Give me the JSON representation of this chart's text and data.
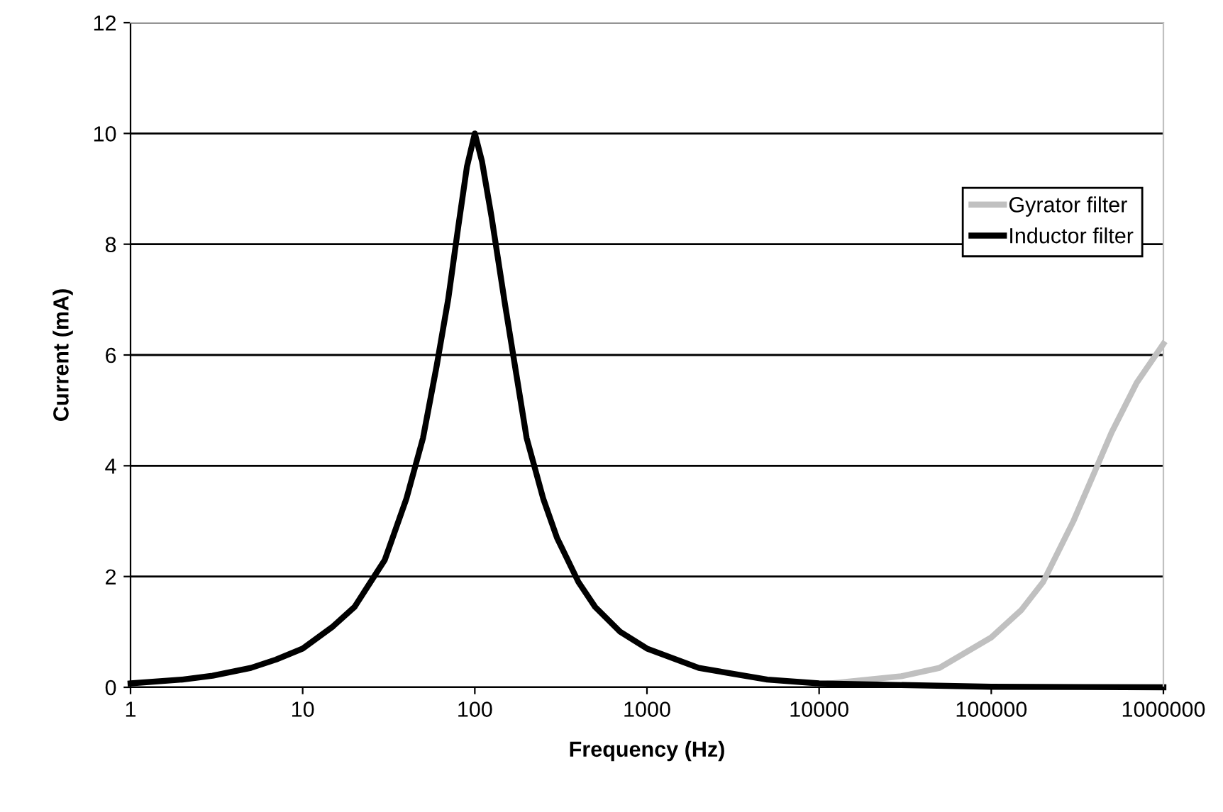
{
  "chart_data": {
    "type": "line",
    "xlabel": "Frequency (Hz)",
    "ylabel": "Current (mA)",
    "log": "x",
    "xlim": [
      1,
      1000000
    ],
    "xticks": [
      1,
      10,
      100,
      1000,
      10000,
      100000,
      1000000
    ],
    "ylim": [
      0,
      12
    ],
    "yticks": [
      0,
      2,
      4,
      6,
      8,
      10,
      12
    ],
    "grid": "y",
    "legend": "right",
    "marker": "none",
    "line_style": "solid",
    "series": [
      {
        "name": "Gyrator filter",
        "color": "#c0c0c0",
        "x": [
          10000,
          30000,
          50000,
          100000,
          150000,
          200000,
          300000,
          500000,
          700000,
          1000000
        ],
        "values": [
          0.05,
          0.2,
          0.35,
          0.9,
          1.4,
          1.9,
          3.0,
          4.6,
          5.5,
          6.2
        ]
      },
      {
        "name": "Inductor filter",
        "color": "#000000",
        "x": [
          1,
          2,
          3,
          5,
          7,
          10,
          15,
          20,
          30,
          40,
          50,
          60,
          70,
          80,
          90,
          100,
          110,
          125,
          150,
          200,
          250,
          300,
          400,
          500,
          700,
          1000,
          2000,
          5000,
          10000,
          100000,
          1000000
        ],
        "values": [
          0.07,
          0.14,
          0.21,
          0.35,
          0.5,
          0.7,
          1.1,
          1.45,
          2.3,
          3.4,
          4.5,
          5.8,
          7.0,
          8.3,
          9.4,
          10,
          9.5,
          8.5,
          6.9,
          4.5,
          3.4,
          2.7,
          1.9,
          1.45,
          1.0,
          0.7,
          0.35,
          0.14,
          0.07,
          0.01,
          0
        ]
      }
    ]
  }
}
